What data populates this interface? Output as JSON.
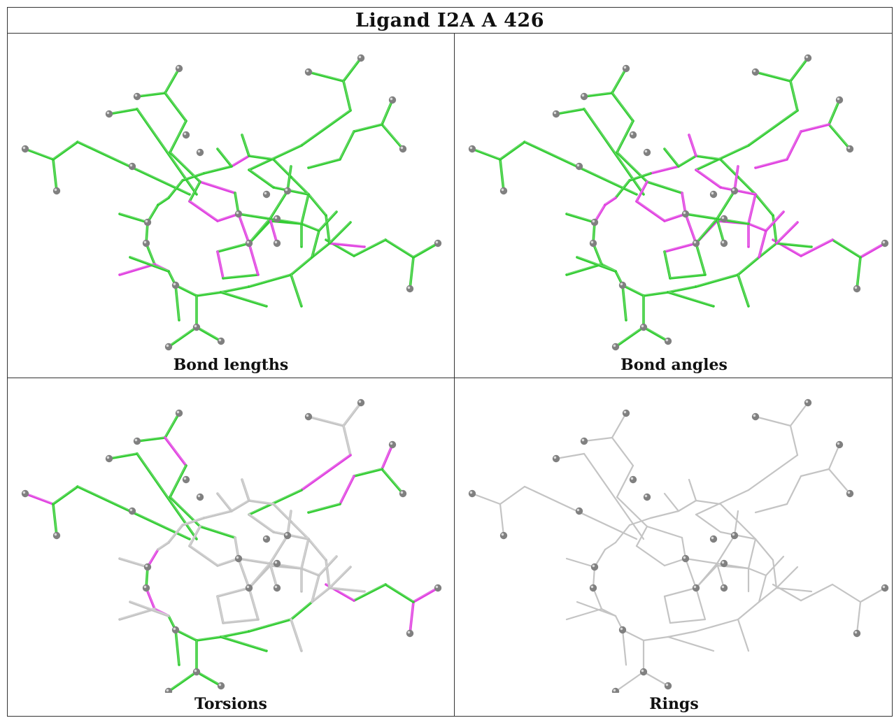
{
  "title": "Ligand I2A A 426",
  "panels": [
    {
      "id": "bond-lengths",
      "caption": "Bond lengths",
      "mode": "lengths"
    },
    {
      "id": "bond-angles",
      "caption": "Bond angles",
      "mode": "angles"
    },
    {
      "id": "torsions",
      "caption": "Torsions",
      "mode": "torsions"
    },
    {
      "id": "rings",
      "caption": "Rings",
      "mode": "rings"
    }
  ],
  "colors": {
    "good": "#33cc33",
    "outlier": "#e040e0",
    "neutral": "#c4c4c4",
    "atom": "#808080",
    "border": "#333333"
  }
}
